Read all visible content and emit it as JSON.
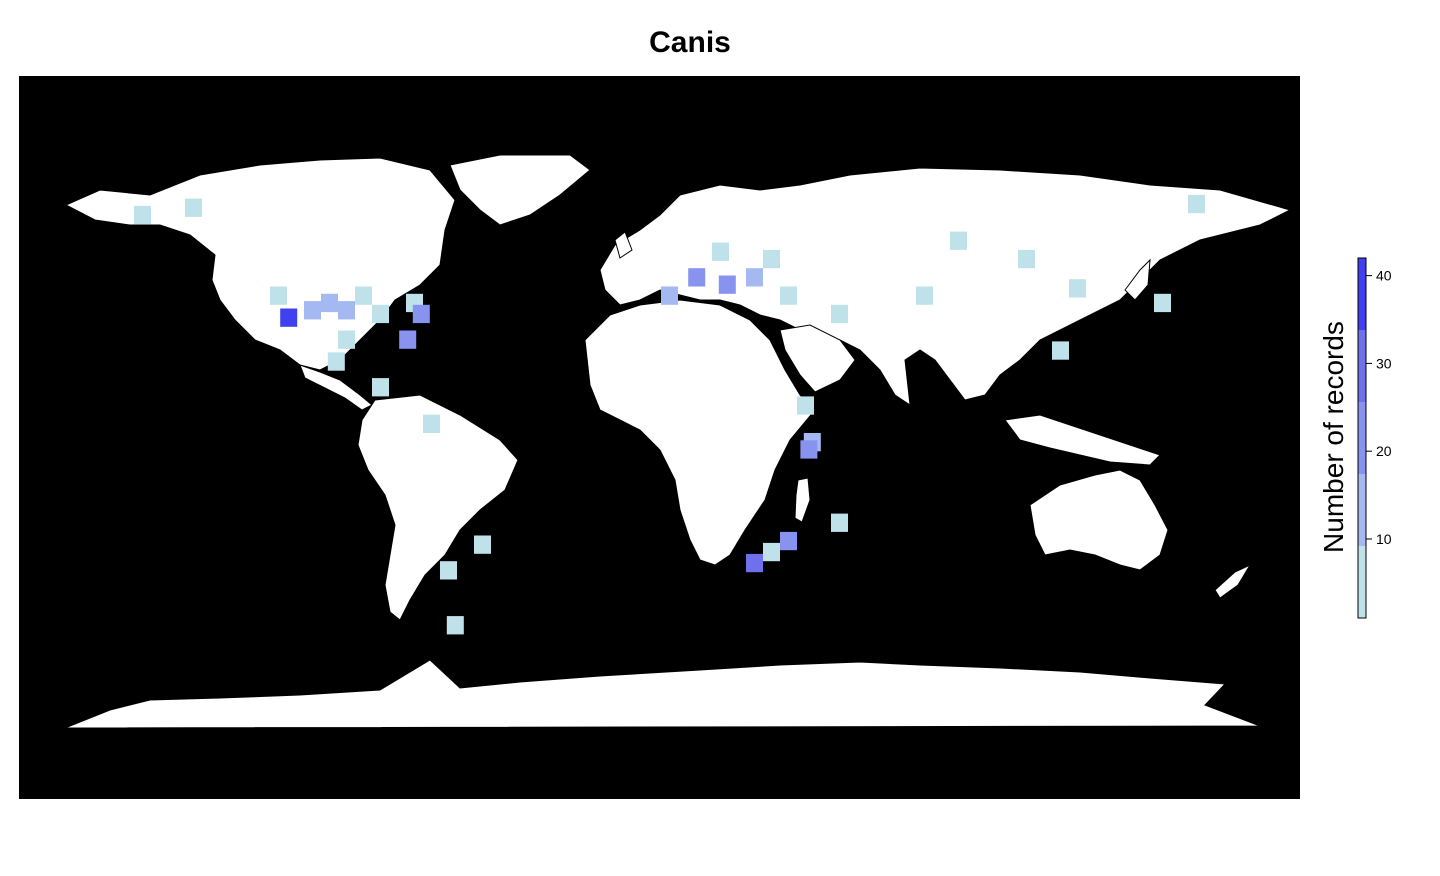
{
  "title": "Canis",
  "colors": {
    "ocean": "#000000",
    "land": "#ffffff",
    "borders": "#000000",
    "legend_ramp": [
      "#bfe2ea",
      "#a4b9f2",
      "#8892ef",
      "#6f70ee",
      "#3f40f0"
    ]
  },
  "legend": {
    "label": "Number of records",
    "ticks": [
      {
        "value": 10,
        "label": "10"
      },
      {
        "value": 20,
        "label": "20"
      },
      {
        "value": 30,
        "label": "30"
      },
      {
        "value": 40,
        "label": "40"
      }
    ],
    "range": [
      1,
      42
    ]
  },
  "grid_cells": [
    {
      "lon": -120,
      "lat": 40,
      "count": 5
    },
    {
      "lon": -117,
      "lat": 34,
      "count": 42
    },
    {
      "lon": -110,
      "lat": 36,
      "count": 15
    },
    {
      "lon": -105,
      "lat": 38,
      "count": 14
    },
    {
      "lon": -100,
      "lat": 36,
      "count": 12
    },
    {
      "lon": -95,
      "lat": 40,
      "count": 6
    },
    {
      "lon": -90,
      "lat": 35,
      "count": 3
    },
    {
      "lon": -80,
      "lat": 38,
      "count": 5
    },
    {
      "lon": -78,
      "lat": 35,
      "count": 18
    },
    {
      "lon": -82,
      "lat": 28,
      "count": 20
    },
    {
      "lon": -100,
      "lat": 28,
      "count": 4
    },
    {
      "lon": -103,
      "lat": 22,
      "count": 3
    },
    {
      "lon": -90,
      "lat": 15,
      "count": 2
    },
    {
      "lon": -160,
      "lat": 62,
      "count": 3
    },
    {
      "lon": -145,
      "lat": 64,
      "count": 2
    },
    {
      "lon": -75,
      "lat": 5,
      "count": 3
    },
    {
      "lon": -60,
      "lat": -28,
      "count": 3
    },
    {
      "lon": -70,
      "lat": -35,
      "count": 3
    },
    {
      "lon": -68,
      "lat": -50,
      "count": 2
    },
    {
      "lon": -5,
      "lat": 40,
      "count": 12
    },
    {
      "lon": 3,
      "lat": 45,
      "count": 18
    },
    {
      "lon": 12,
      "lat": 43,
      "count": 22
    },
    {
      "lon": 20,
      "lat": 45,
      "count": 15
    },
    {
      "lon": 25,
      "lat": 50,
      "count": 6
    },
    {
      "lon": 10,
      "lat": 52,
      "count": 8
    },
    {
      "lon": 30,
      "lat": 40,
      "count": 6
    },
    {
      "lon": 35,
      "lat": 10,
      "count": 4
    },
    {
      "lon": 37,
      "lat": 0,
      "count": 10
    },
    {
      "lon": 36,
      "lat": -2,
      "count": 18
    },
    {
      "lon": 30,
      "lat": -27,
      "count": 25
    },
    {
      "lon": 20,
      "lat": -33,
      "count": 30
    },
    {
      "lon": 25,
      "lat": -30,
      "count": 8
    },
    {
      "lon": 45,
      "lat": -22,
      "count": 4
    },
    {
      "lon": 45,
      "lat": 35,
      "count": 3
    },
    {
      "lon": 70,
      "lat": 40,
      "count": 3
    },
    {
      "lon": 80,
      "lat": 55,
      "count": 2
    },
    {
      "lon": 100,
      "lat": 50,
      "count": 2
    },
    {
      "lon": 110,
      "lat": 25,
      "count": 3
    },
    {
      "lon": 115,
      "lat": 42,
      "count": 2
    },
    {
      "lon": 140,
      "lat": 38,
      "count": 4
    },
    {
      "lon": 150,
      "lat": 65,
      "count": 2
    }
  ]
}
